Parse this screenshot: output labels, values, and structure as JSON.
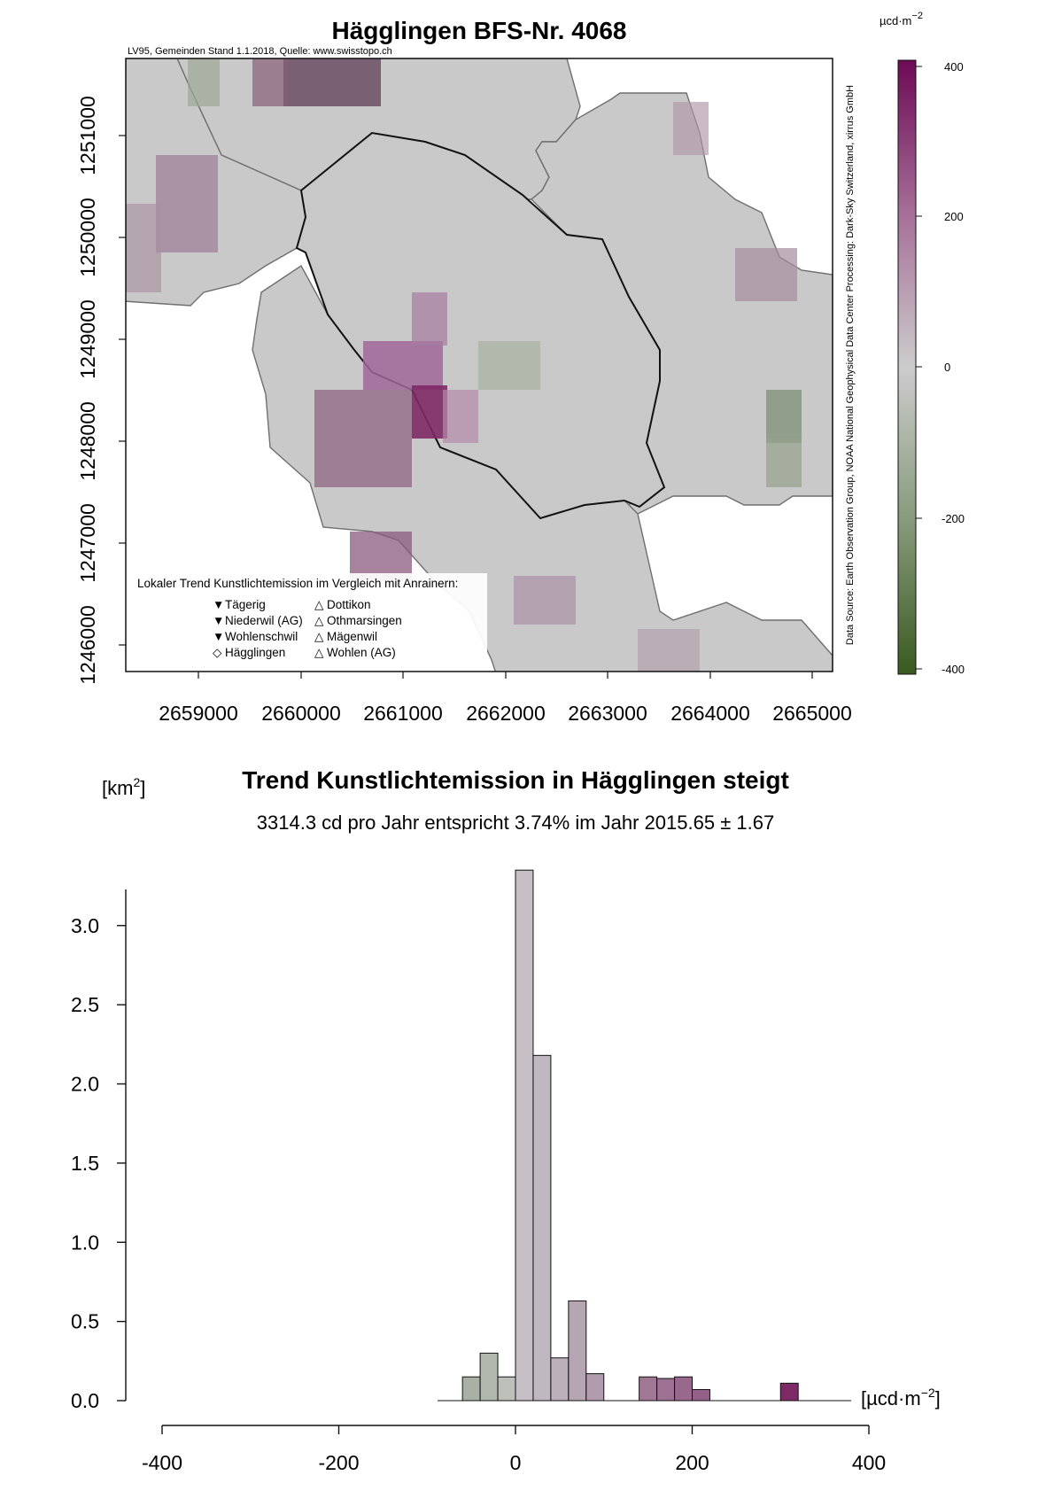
{
  "colors": {
    "gray": "#c7c7c7",
    "purple_high": "#7a1a5c",
    "purple_mid": "#9a5c88",
    "purple_low": "#b494ad",
    "green_low": "#a2ae9c",
    "green_high": "#3c5e23"
  },
  "map": {
    "title": "Hägglingen BFS-Nr. 4068",
    "subtitle": "LV95, Gemeinden Stand 1.1.2018, Quelle: www.swisstopo.ch",
    "source": "Data Source: Earth Observation Group, NOAA National Geophysical Data Center Processing: Dark-Sky Switzerland, xirrus GmbH",
    "x_ticks": [
      "2659000",
      "2660000",
      "2661000",
      "2662000",
      "2663000",
      "2664000",
      "2665000"
    ],
    "y_ticks": [
      "1246000",
      "1247000",
      "1248000",
      "1249000",
      "1250000",
      "1251000"
    ],
    "legend": {
      "title": "Lokaler Trend Kunstlichtemission im Vergleich mit Anrainern:",
      "col1": [
        {
          "symbol": "▼",
          "label": "Tägerig"
        },
        {
          "symbol": "▼",
          "label": "Niederwil (AG)"
        },
        {
          "symbol": "▼",
          "label": "Wohlenschwil"
        },
        {
          "symbol": "◇",
          "label": "Hägglingen"
        }
      ],
      "col2": [
        {
          "symbol": "△",
          "label": "Dottikon"
        },
        {
          "symbol": "△",
          "label": "Othmarsingen"
        },
        {
          "symbol": "△",
          "label": "Mägenwil"
        },
        {
          "symbol": "△",
          "label": "Wohlen (AG)"
        }
      ]
    }
  },
  "colorbar": {
    "unit": "µcd·m",
    "unit_exp": "−2",
    "ticks": [
      "400",
      "200",
      "0",
      "-200",
      "-400"
    ],
    "range": [
      -400,
      400
    ]
  },
  "chart_data": {
    "type": "bar",
    "title": "Trend Kunstlichtemission in Hägglingen steigt",
    "subtitle": "3314.3 cd pro Jahr entspricht 3.74% im Jahr 2015.65 ± 1.67",
    "ylabel": "[km",
    "ylabel_exp": "2",
    "ylabel_end": "]",
    "xlabel": "[µcd·m",
    "xlabel_exp": "−2",
    "xlabel_end": "]",
    "xlim": [
      -400,
      400
    ],
    "ylim": [
      0,
      3.3
    ],
    "x_ticks": [
      "-400",
      "-200",
      "0",
      "200",
      "400"
    ],
    "y_ticks": [
      "0.0",
      "0.5",
      "1.0",
      "1.5",
      "2.0",
      "2.5",
      "3.0"
    ],
    "bin_width": 20,
    "bins": [
      {
        "start": -60,
        "value": 0.15,
        "color": "#a9b1a5"
      },
      {
        "start": -40,
        "value": 0.3,
        "color": "#b0b7ad"
      },
      {
        "start": -20,
        "value": 0.15,
        "color": "#bcc0b9"
      },
      {
        "start": 0,
        "value": 3.35,
        "color": "#c6c0c6"
      },
      {
        "start": 20,
        "value": 2.18,
        "color": "#c0b8c0"
      },
      {
        "start": 40,
        "value": 0.27,
        "color": "#bcb0bb"
      },
      {
        "start": 60,
        "value": 0.63,
        "color": "#b6a6b4"
      },
      {
        "start": 80,
        "value": 0.17,
        "color": "#b09cae"
      },
      {
        "start": 140,
        "value": 0.15,
        "color": "#a07896"
      },
      {
        "start": 160,
        "value": 0.14,
        "color": "#9c7192"
      },
      {
        "start": 180,
        "value": 0.15,
        "color": "#98698d"
      },
      {
        "start": 200,
        "value": 0.07,
        "color": "#946189"
      },
      {
        "start": 300,
        "value": 0.11,
        "color": "#7e2a66"
      }
    ]
  }
}
